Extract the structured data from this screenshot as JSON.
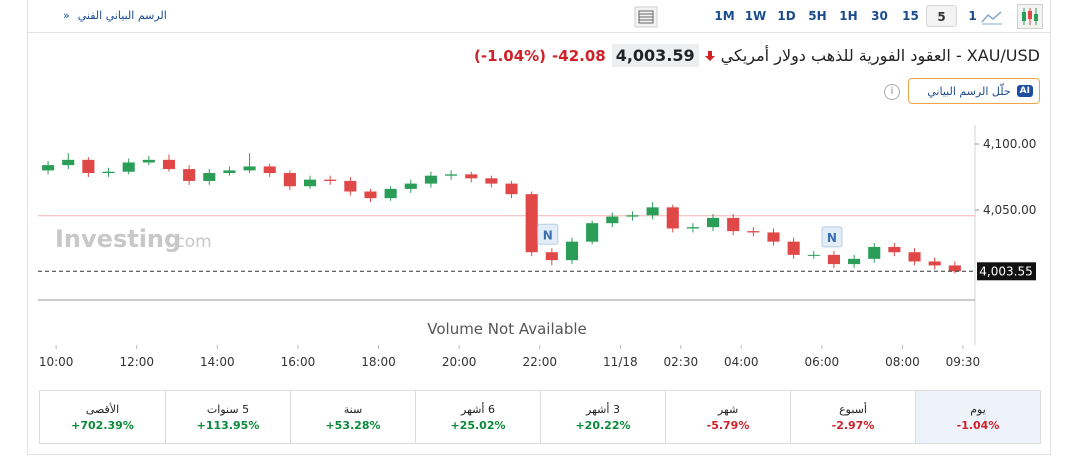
{
  "toolbar": {
    "technical_link": "الرسم البياني الفني",
    "technical_arrow": "»",
    "timeframes": [
      "1M",
      "1W",
      "1D",
      "5H",
      "1H",
      "30",
      "15",
      "5",
      "1"
    ],
    "selected_timeframe": 7
  },
  "header": {
    "title": "XAU/USD - العقود الفورية للذهب دولار أمريكي",
    "price": "4,003.59",
    "change": "-42.08",
    "change_percent": "(-1.04%)",
    "ai_badge": "AI",
    "ai_button": "حلّل الرسم البياني",
    "info": "i"
  },
  "chart_data": {
    "type": "candlestick",
    "open": [
      4080,
      4084,
      4088,
      4078,
      4079,
      4086,
      4088,
      4081,
      4072,
      4078,
      4080,
      4083,
      4078,
      4068,
      4073,
      4072,
      4064,
      4059,
      4066,
      4070,
      4076,
      4077,
      4074,
      4070,
      4062,
      4018,
      4012,
      4026,
      4040,
      4045,
      4046,
      4052,
      4036,
      4037,
      4044,
      4034,
      4033,
      4026,
      4016,
      4016,
      4009,
      4013,
      4022,
      4018,
      4011,
      4008
    ],
    "high": [
      4087,
      4093,
      4090,
      4082,
      4089,
      4091,
      4092,
      4084,
      4081,
      4083,
      4093,
      4085,
      4080,
      4076,
      4076,
      4075,
      4066,
      4068,
      4073,
      4079,
      4080,
      4079,
      4076,
      4072,
      4064,
      4021,
      4029,
      4042,
      4048,
      4049,
      4056,
      4054,
      4040,
      4047,
      4047,
      4037,
      4036,
      4029,
      4019,
      4019,
      4016,
      4025,
      4025,
      4021,
      4014,
      4011
    ],
    "low": [
      4077,
      4081,
      4075,
      4075,
      4077,
      4084,
      4079,
      4069,
      4069,
      4076,
      4078,
      4075,
      4065,
      4066,
      4069,
      4061,
      4056,
      4057,
      4063,
      4067,
      4073,
      4071,
      4067,
      4059,
      4015,
      4008,
      4009,
      4024,
      4037,
      4042,
      4043,
      4033,
      4033,
      4034,
      4031,
      4030,
      4023,
      4013,
      4013,
      4006,
      4006,
      4010,
      4015,
      4008,
      4005,
      4002
    ],
    "close": [
      4084,
      4088,
      4078,
      4079,
      4086,
      4088,
      4081,
      4072,
      4078,
      4080,
      4083,
      4078,
      4068,
      4073,
      4072,
      4064,
      4059,
      4066,
      4070,
      4076,
      4077,
      4074,
      4070,
      4062,
      4018,
      4012,
      4026,
      4040,
      4045,
      4046,
      4052,
      4036,
      4037,
      4044,
      4034,
      4033,
      4026,
      4016,
      4016,
      4009,
      4013,
      4022,
      4018,
      4011,
      4008,
      4003.55
    ],
    "up_color": "#2a9d57",
    "down_color": "#e04848",
    "xlim": [
      0,
      46.5
    ],
    "xticks": [
      {
        "value": 0.9,
        "label": "10:00"
      },
      {
        "value": 4.9,
        "label": "12:00"
      },
      {
        "value": 8.9,
        "label": "14:00"
      },
      {
        "value": 12.9,
        "label": "16:00"
      },
      {
        "value": 16.9,
        "label": "18:00"
      },
      {
        "value": 20.9,
        "label": "20:00"
      },
      {
        "value": 24.9,
        "label": "22:00"
      },
      {
        "value": 28.9,
        "label": "11/18"
      },
      {
        "value": 31.9,
        "label": "02:30"
      },
      {
        "value": 34.9,
        "label": "04:00"
      },
      {
        "value": 38.9,
        "label": "06:00"
      },
      {
        "value": 42.9,
        "label": "08:00"
      },
      {
        "value": 45.9,
        "label": "09:30"
      }
    ],
    "ylim": [
      3981.8,
      4114.4
    ],
    "yticks": [
      {
        "value": 4100,
        "label": "4,100.00"
      },
      {
        "value": 4050,
        "label": "4,050.00"
      }
    ],
    "grid": false,
    "last_price": {
      "value": 4003.55,
      "label": "4,003.55"
    },
    "reference_line": 4045.67,
    "reference_color": "#f2b4b4",
    "annotations": [
      {
        "x": 25.3,
        "label": "N"
      },
      {
        "x": 39.4,
        "label": "N"
      }
    ],
    "watermark": "Investing",
    "watermark_suffix": ".com",
    "volume_note": "Volume Not Available"
  },
  "performance": [
    {
      "period": "يوم",
      "change": "-1.04%"
    },
    {
      "period": "أسبوع",
      "change": "-2.97%"
    },
    {
      "period": "شهر",
      "change": "-5.79%"
    },
    {
      "period": "3 أشهر",
      "change": "+20.22%"
    },
    {
      "period": "6 أشهر",
      "change": "+25.02%"
    },
    {
      "period": "سنة",
      "change": "+53.28%"
    },
    {
      "period": "5 سنوات",
      "change": "+113.95%"
    },
    {
      "period": "الأقصى",
      "change": "+702.39%"
    }
  ],
  "selected_period": 0
}
